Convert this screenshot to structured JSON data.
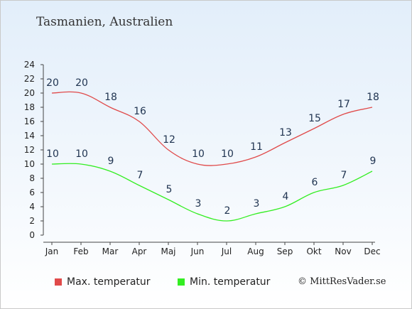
{
  "title": "Tasmanien, Australien",
  "credit": "© MittResVader.se",
  "chart_data": {
    "type": "line",
    "categories": [
      "Jan",
      "Feb",
      "Mar",
      "Apr",
      "Maj",
      "Jun",
      "Jul",
      "Aug",
      "Sep",
      "Okt",
      "Nov",
      "Dec"
    ],
    "series": [
      {
        "name": "Max. temperatur",
        "color": "#e04a4a",
        "values": [
          20,
          20,
          18,
          16,
          12,
          10,
          10,
          11,
          13,
          15,
          17,
          18
        ]
      },
      {
        "name": "Min. temperatur",
        "color": "#33ee22",
        "values": [
          10,
          10,
          9,
          7,
          5,
          3,
          2,
          3,
          4,
          6,
          7,
          9
        ]
      }
    ],
    "yticks": [
      0,
      2,
      4,
      6,
      8,
      10,
      12,
      14,
      16,
      18,
      20,
      22,
      24
    ],
    "ylim": [
      0,
      24
    ],
    "grid": false,
    "legend_position": "bottom"
  }
}
